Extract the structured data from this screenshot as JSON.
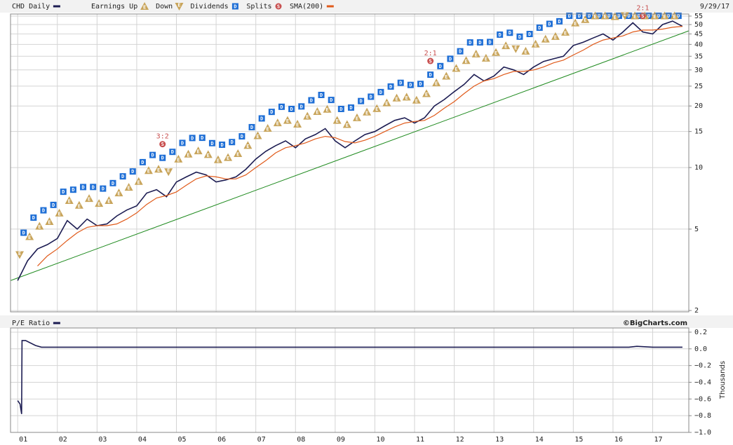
{
  "chart_data": [
    {
      "type": "line",
      "log_scale": true,
      "grid": true,
      "date_label": "9/29/17",
      "xlim": [
        2000.82,
        2017.91
      ],
      "ylim": [
        1.97,
        56.3
      ],
      "yticks": [
        2,
        5,
        10,
        15,
        20,
        25,
        30,
        35,
        40,
        45,
        50,
        55
      ],
      "series": [
        {
          "name": "CHD Daily",
          "color": "#1c1c52",
          "x": [
            2001.0,
            2001.25,
            2001.5,
            2001.75,
            2002.0,
            2002.25,
            2002.5,
            2002.75,
            2003.0,
            2003.25,
            2003.5,
            2003.75,
            2004.0,
            2004.25,
            2004.5,
            2004.75,
            2005.0,
            2005.25,
            2005.5,
            2005.75,
            2006.0,
            2006.25,
            2006.5,
            2006.75,
            2007.0,
            2007.25,
            2007.5,
            2007.75,
            2008.0,
            2008.25,
            2008.5,
            2008.75,
            2009.0,
            2009.25,
            2009.5,
            2009.75,
            2010.0,
            2010.25,
            2010.5,
            2010.75,
            2011.0,
            2011.25,
            2011.5,
            2011.75,
            2012.0,
            2012.25,
            2012.5,
            2012.75,
            2013.0,
            2013.25,
            2013.5,
            2013.75,
            2014.0,
            2014.25,
            2014.5,
            2014.75,
            2015.0,
            2015.25,
            2015.5,
            2015.75,
            2016.0,
            2016.25,
            2016.5,
            2016.75,
            2017.0,
            2017.25,
            2017.5,
            2017.75
          ],
          "values": [
            2.8,
            3.5,
            4.0,
            4.2,
            4.5,
            5.5,
            5.0,
            5.6,
            5.2,
            5.3,
            5.8,
            6.2,
            6.5,
            7.5,
            7.8,
            7.2,
            8.5,
            9.0,
            9.5,
            9.2,
            8.5,
            8.7,
            9.0,
            9.8,
            11.0,
            12.0,
            12.8,
            13.5,
            12.5,
            13.8,
            14.5,
            15.5,
            13.5,
            12.5,
            13.5,
            14.5,
            15.0,
            16.0,
            17.0,
            17.5,
            16.5,
            17.5,
            20.0,
            21.5,
            23.5,
            25.5,
            28.5,
            26.5,
            28.0,
            31.0,
            30.0,
            28.5,
            31.0,
            33.0,
            34.0,
            35.0,
            39.5,
            41.0,
            43.0,
            45.0,
            42.0,
            46.0,
            51.0,
            46.0,
            45.0,
            50.0,
            52.0,
            49.0
          ]
        },
        {
          "name": "SMA(200)",
          "color": "#e05a1a",
          "x": [
            2001.5,
            2001.75,
            2002.0,
            2002.25,
            2002.5,
            2002.75,
            2003.0,
            2003.25,
            2003.5,
            2003.75,
            2004.0,
            2004.25,
            2004.5,
            2004.75,
            2005.0,
            2005.25,
            2005.5,
            2005.75,
            2006.0,
            2006.25,
            2006.5,
            2006.75,
            2007.0,
            2007.25,
            2007.5,
            2007.75,
            2008.0,
            2008.25,
            2008.5,
            2008.75,
            2009.0,
            2009.25,
            2009.5,
            2009.75,
            2010.0,
            2010.25,
            2010.5,
            2010.75,
            2011.0,
            2011.25,
            2011.5,
            2011.75,
            2012.0,
            2012.25,
            2012.5,
            2012.75,
            2013.0,
            2013.25,
            2013.5,
            2013.75,
            2014.0,
            2014.25,
            2014.5,
            2014.75,
            2015.0,
            2015.25,
            2015.5,
            2015.75,
            2016.0,
            2016.25,
            2016.5,
            2016.75,
            2017.0,
            2017.25,
            2017.5,
            2017.75
          ],
          "values": [
            3.3,
            3.7,
            4.0,
            4.4,
            4.8,
            5.1,
            5.2,
            5.2,
            5.3,
            5.6,
            6.0,
            6.6,
            7.1,
            7.3,
            7.6,
            8.2,
            8.8,
            9.1,
            9.0,
            8.8,
            8.8,
            9.2,
            10.0,
            10.8,
            11.8,
            12.5,
            12.8,
            13.2,
            13.8,
            14.2,
            14.0,
            13.4,
            13.2,
            13.6,
            14.2,
            15.0,
            15.8,
            16.5,
            16.8,
            17.0,
            18.0,
            19.5,
            21.0,
            23.0,
            25.0,
            26.5,
            27.2,
            28.5,
            29.5,
            29.5,
            30.0,
            31.0,
            32.5,
            33.5,
            35.5,
            37.5,
            40.0,
            42.0,
            43.0,
            44.0,
            46.0,
            47.0,
            47.0,
            47.5,
            48.5,
            49.0
          ]
        }
      ],
      "trend_line": {
        "color": "#1e8a1e",
        "x": [
          2000.82,
          2017.91
        ],
        "values": [
          2.8,
          46.6
        ]
      },
      "markers": {
        "earnings_up": {
          "name": "Earnings Up",
          "symbol": "E",
          "color": "#c8a45a",
          "x": [
            2001.3,
            2001.55,
            2001.8,
            2002.05,
            2002.3,
            2002.55,
            2002.8,
            2003.05,
            2003.3,
            2003.55,
            2003.8,
            2004.05,
            2004.3,
            2004.55,
            2005.05,
            2005.3,
            2005.55,
            2005.8,
            2006.05,
            2006.3,
            2006.55,
            2006.8,
            2007.05,
            2007.3,
            2007.55,
            2007.8,
            2008.05,
            2008.3,
            2008.55,
            2008.8,
            2009.05,
            2009.3,
            2009.55,
            2009.8,
            2010.05,
            2010.3,
            2010.55,
            2010.8,
            2011.05,
            2011.3,
            2011.55,
            2011.8,
            2012.05,
            2012.3,
            2012.55,
            2012.8,
            2013.05,
            2013.3,
            2013.8,
            2014.05,
            2014.3,
            2014.55,
            2014.8,
            2015.05,
            2015.3,
            2015.55,
            2015.8,
            2016.05,
            2016.55,
            2016.8,
            2017.05,
            2017.3,
            2017.55
          ]
        },
        "earnings_down": {
          "name": "Down",
          "symbol": "E",
          "color": "#c8a45a",
          "x": [
            2001.05,
            2004.8,
            2013.55,
            2016.3
          ]
        },
        "dividends": {
          "name": "Dividends",
          "symbol": "D",
          "color": "#1f6fd6",
          "x": [
            2001.15,
            2001.4,
            2001.65,
            2001.9,
            2002.15,
            2002.4,
            2002.65,
            2002.9,
            2003.15,
            2003.4,
            2003.65,
            2003.9,
            2004.15,
            2004.4,
            2004.65,
            2004.9,
            2005.15,
            2005.4,
            2005.65,
            2005.9,
            2006.15,
            2006.4,
            2006.65,
            2006.9,
            2007.15,
            2007.4,
            2007.65,
            2007.9,
            2008.15,
            2008.4,
            2008.65,
            2008.9,
            2009.15,
            2009.4,
            2009.65,
            2009.9,
            2010.15,
            2010.4,
            2010.65,
            2010.9,
            2011.15,
            2011.4,
            2011.65,
            2011.9,
            2012.15,
            2012.4,
            2012.65,
            2012.9,
            2013.15,
            2013.4,
            2013.65,
            2013.9,
            2014.15,
            2014.4,
            2014.65,
            2014.9,
            2015.15,
            2015.4,
            2015.65,
            2015.9,
            2016.15,
            2016.4,
            2016.65,
            2016.9,
            2017.15,
            2017.4,
            2017.65
          ]
        },
        "splits": {
          "name": "Splits",
          "symbol": "S",
          "color": "#c85050",
          "x": [
            2004.65,
            2011.4,
            2016.75
          ],
          "labels": [
            "3:2",
            "2:1",
            "2:1"
          ]
        }
      }
    },
    {
      "type": "line",
      "grid": true,
      "source": "©BigCharts.com",
      "y_axis_label": "Thousands",
      "xlim": [
        2000.82,
        2017.91
      ],
      "ylim": [
        -1.0,
        0.25
      ],
      "yticks": [
        {
          "value": 0.2,
          "label": "0.2"
        },
        {
          "value": 0.0,
          "label": "0.0"
        },
        {
          "value": -0.2,
          "label": "−0.2"
        },
        {
          "value": -0.4,
          "label": "−0.4"
        },
        {
          "value": -0.6,
          "label": "−0.6"
        },
        {
          "value": -0.8,
          "label": "−0.8"
        },
        {
          "value": -1.0,
          "label": "−1.0"
        }
      ],
      "xticks": [
        {
          "value": 2001,
          "label": "01"
        },
        {
          "value": 2002,
          "label": "02"
        },
        {
          "value": 2003,
          "label": "03"
        },
        {
          "value": 2004,
          "label": "04"
        },
        {
          "value": 2005,
          "label": "05"
        },
        {
          "value": 2006,
          "label": "06"
        },
        {
          "value": 2007,
          "label": "07"
        },
        {
          "value": 2008,
          "label": "08"
        },
        {
          "value": 2009,
          "label": "09"
        },
        {
          "value": 2010,
          "label": "10"
        },
        {
          "value": 2011,
          "label": "11"
        },
        {
          "value": 2012,
          "label": "12"
        },
        {
          "value": 2013,
          "label": "13"
        },
        {
          "value": 2014,
          "label": "14"
        },
        {
          "value": 2015,
          "label": "15"
        },
        {
          "value": 2016,
          "label": "16"
        },
        {
          "value": 2017,
          "label": "17"
        }
      ],
      "series": [
        {
          "name": "P/E Ratio",
          "color": "#1c1c52",
          "x": [
            2001.0,
            2001.06,
            2001.1,
            2001.11,
            2001.2,
            2001.45,
            2001.6,
            2003.0,
            2005.0,
            2007.0,
            2009.0,
            2011.0,
            2013.0,
            2015.0,
            2016.4,
            2016.6,
            2017.0,
            2017.75
          ],
          "values": [
            -0.62,
            -0.66,
            -0.78,
            0.1,
            0.1,
            0.04,
            0.02,
            0.02,
            0.02,
            0.02,
            0.02,
            0.02,
            0.02,
            0.02,
            0.02,
            0.03,
            0.02,
            0.02
          ]
        }
      ]
    }
  ]
}
